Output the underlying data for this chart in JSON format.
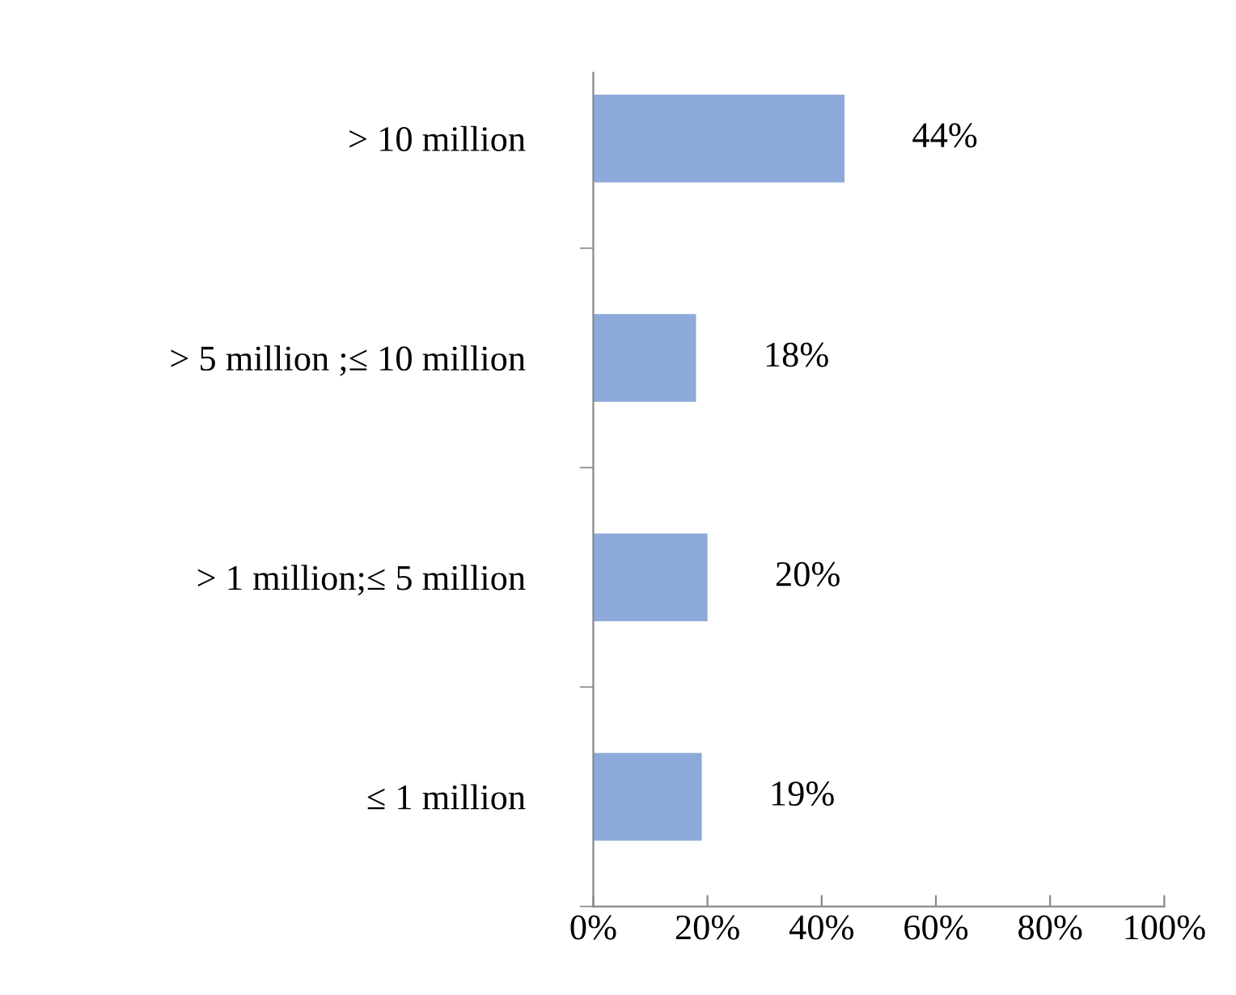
{
  "chart_data": {
    "type": "bar",
    "orientation": "horizontal",
    "categories": [
      "> 10 million",
      "> 5 million ;≤ 10 million",
      "> 1 million;≤ 5 million",
      "≤ 1 million"
    ],
    "values": [
      44,
      18,
      20,
      19
    ],
    "value_labels": [
      "44%",
      "18%",
      "20%",
      "19%"
    ],
    "color": "#8eaadb",
    "xlim": [
      0,
      100
    ],
    "xticks": [
      {
        "value": 0,
        "label": "0%"
      },
      {
        "value": 20,
        "label": "20%"
      },
      {
        "value": 40,
        "label": "40%"
      },
      {
        "value": 60,
        "label": "60%"
      },
      {
        "value": 80,
        "label": "80%"
      },
      {
        "value": 100,
        "label": "100%"
      }
    ],
    "grid": false,
    "legend": false
  }
}
